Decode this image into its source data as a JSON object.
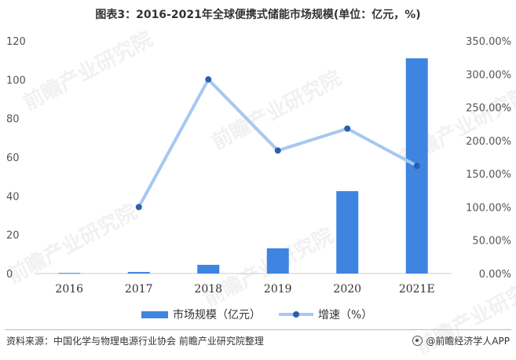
{
  "title": "图表3：2016-2021年全球便携式储能市场规模(单位：亿元，%)",
  "source": "资料来源：中国化学与物理电源行业协会 前瞻产业研究院整理",
  "brand": "@前瞻经济学人APP",
  "watermark_text": "前瞻产业研究院",
  "colors": {
    "bar": "#3d85e0",
    "line": "#a6c8f2",
    "dot": "#2a5fb0"
  },
  "chart_data": {
    "type": "bar",
    "categories": [
      "2016",
      "2017",
      "2018",
      "2019",
      "2020",
      "2021E"
    ],
    "series": [
      {
        "name": "市场规模（亿元）",
        "type": "bar",
        "axis": "left",
        "values": [
          0.3,
          0.8,
          4.5,
          13,
          42.5,
          111
        ]
      },
      {
        "name": "增速（%）",
        "type": "line",
        "axis": "right",
        "values": [
          null,
          100,
          292,
          185,
          218,
          162
        ]
      }
    ],
    "y_left": {
      "ylim": [
        0,
        120
      ],
      "ticks": [
        "0",
        "20",
        "40",
        "60",
        "80",
        "100",
        "120"
      ]
    },
    "y_right": {
      "ylim": [
        0,
        350
      ],
      "ticks": [
        "0.00%",
        "50.00%",
        "100.00%",
        "150.00%",
        "200.00%",
        "250.00%",
        "300.00%",
        "350.00%"
      ]
    },
    "legend_position": "bottom"
  }
}
